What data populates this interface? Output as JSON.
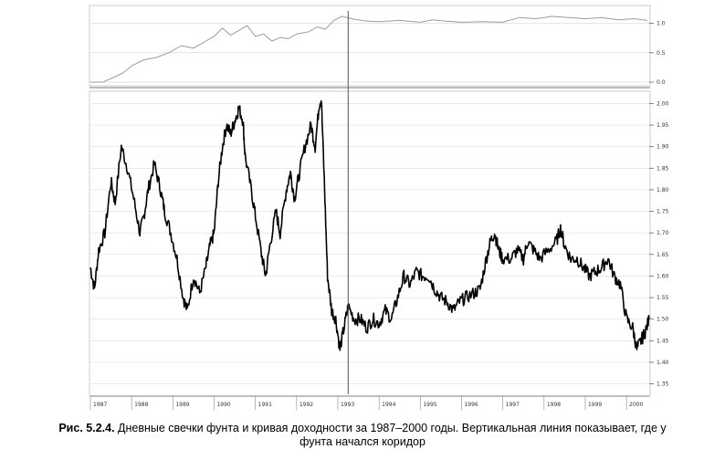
{
  "caption": {
    "label": "Рис. 5.2.4.",
    "line1": "Дневные свечки фунта и кривая доходности за 1987–2000 годы. Вертикальная линия показывает, где у",
    "line2": "фунта начался коридор"
  },
  "colors": {
    "price": "#000000",
    "equity": "#9a9a9a",
    "grid": "#cccccc",
    "marker": "#555555"
  },
  "chart_data": [
    {
      "type": "line",
      "panel": "equity-curve",
      "yticks": [
        "1.0",
        "0.5",
        "0.0"
      ],
      "ylim": [
        0,
        1.15
      ],
      "xlim": [
        1987.0,
        2000.55
      ],
      "series": [
        {
          "points": [
            [
              1987.0,
              0.0
            ],
            [
              1987.3,
              0.0
            ],
            [
              1987.5,
              0.06
            ],
            [
              1987.8,
              0.16
            ],
            [
              1988.0,
              0.28
            ],
            [
              1988.3,
              0.38
            ],
            [
              1988.6,
              0.42
            ],
            [
              1988.9,
              0.5
            ],
            [
              1989.2,
              0.62
            ],
            [
              1989.5,
              0.58
            ],
            [
              1989.8,
              0.7
            ],
            [
              1990.0,
              0.78
            ],
            [
              1990.2,
              0.92
            ],
            [
              1990.4,
              0.8
            ],
            [
              1990.6,
              0.88
            ],
            [
              1990.8,
              0.96
            ],
            [
              1991.0,
              0.78
            ],
            [
              1991.2,
              0.82
            ],
            [
              1991.4,
              0.7
            ],
            [
              1991.6,
              0.76
            ],
            [
              1991.8,
              0.74
            ],
            [
              1992.0,
              0.82
            ],
            [
              1992.3,
              0.86
            ],
            [
              1992.5,
              0.94
            ],
            [
              1992.7,
              0.9
            ],
            [
              1992.9,
              1.05
            ],
            [
              1993.1,
              1.12
            ],
            [
              1993.4,
              1.07
            ],
            [
              1993.7,
              1.04
            ],
            [
              1994.0,
              1.03
            ],
            [
              1994.5,
              1.05
            ],
            [
              1995.0,
              1.02
            ],
            [
              1995.3,
              1.06
            ],
            [
              1995.6,
              1.04
            ],
            [
              1996.0,
              1.02
            ],
            [
              1996.5,
              1.03
            ],
            [
              1997.0,
              1.02
            ],
            [
              1997.4,
              1.1
            ],
            [
              1997.8,
              1.08
            ],
            [
              1998.2,
              1.12
            ],
            [
              1998.6,
              1.1
            ],
            [
              1999.0,
              1.08
            ],
            [
              1999.4,
              1.1
            ],
            [
              1999.8,
              1.06
            ],
            [
              2000.2,
              1.08
            ],
            [
              2000.5,
              1.05
            ]
          ]
        }
      ]
    },
    {
      "type": "line",
      "panel": "gbp-daily-price",
      "yticks": [
        "2.00",
        "1.95",
        "1.90",
        "1.85",
        "1.80",
        "1.75",
        "1.70",
        "1.65",
        "1.60",
        "1.55",
        "1.50",
        "1.45",
        "1.40",
        "1.35"
      ],
      "ylim": [
        1.33,
        2.02
      ],
      "xlim": [
        1987.0,
        2000.55
      ],
      "xticks": [
        "1987",
        "1988",
        "1989",
        "1990",
        "1991",
        "1992",
        "1993",
        "1994",
        "1995",
        "1996",
        "1997",
        "1998",
        "1999",
        "2000"
      ],
      "corridor_start": 1993.25,
      "series": [
        {
          "points": [
            [
              1987.0,
              1.62
            ],
            [
              1987.1,
              1.57
            ],
            [
              1987.2,
              1.66
            ],
            [
              1987.35,
              1.7
            ],
            [
              1987.5,
              1.82
            ],
            [
              1987.6,
              1.77
            ],
            [
              1987.75,
              1.9
            ],
            [
              1987.9,
              1.85
            ],
            [
              1988.05,
              1.78
            ],
            [
              1988.2,
              1.7
            ],
            [
              1988.3,
              1.74
            ],
            [
              1988.4,
              1.8
            ],
            [
              1988.55,
              1.86
            ],
            [
              1988.7,
              1.8
            ],
            [
              1988.8,
              1.75
            ],
            [
              1988.95,
              1.7
            ],
            [
              1989.1,
              1.64
            ],
            [
              1989.25,
              1.55
            ],
            [
              1989.35,
              1.52
            ],
            [
              1989.5,
              1.6
            ],
            [
              1989.65,
              1.56
            ],
            [
              1989.8,
              1.62
            ],
            [
              1989.9,
              1.67
            ],
            [
              1990.0,
              1.7
            ],
            [
              1990.1,
              1.82
            ],
            [
              1990.2,
              1.9
            ],
            [
              1990.3,
              1.95
            ],
            [
              1990.4,
              1.93
            ],
            [
              1990.5,
              1.96
            ],
            [
              1990.6,
              1.99
            ],
            [
              1990.7,
              1.96
            ],
            [
              1990.75,
              1.88
            ],
            [
              1990.9,
              1.8
            ],
            [
              1991.0,
              1.74
            ],
            [
              1991.15,
              1.65
            ],
            [
              1991.25,
              1.6
            ],
            [
              1991.35,
              1.67
            ],
            [
              1991.5,
              1.75
            ],
            [
              1991.6,
              1.7
            ],
            [
              1991.75,
              1.8
            ],
            [
              1991.85,
              1.84
            ],
            [
              1991.95,
              1.78
            ],
            [
              1992.05,
              1.83
            ],
            [
              1992.2,
              1.9
            ],
            [
              1992.35,
              1.95
            ],
            [
              1992.45,
              1.9
            ],
            [
              1992.55,
              2.0
            ],
            [
              1992.6,
              2.01
            ],
            [
              1992.68,
              1.8
            ],
            [
              1992.75,
              1.6
            ],
            [
              1992.85,
              1.52
            ],
            [
              1992.95,
              1.5
            ],
            [
              1993.05,
              1.43
            ],
            [
              1993.15,
              1.48
            ],
            [
              1993.25,
              1.53
            ],
            [
              1993.4,
              1.5
            ],
            [
              1993.55,
              1.5
            ],
            [
              1993.7,
              1.48
            ],
            [
              1993.85,
              1.5
            ],
            [
              1994.0,
              1.49
            ],
            [
              1994.15,
              1.52
            ],
            [
              1994.3,
              1.5
            ],
            [
              1994.45,
              1.55
            ],
            [
              1994.6,
              1.6
            ],
            [
              1994.75,
              1.58
            ],
            [
              1994.9,
              1.61
            ],
            [
              1995.05,
              1.6
            ],
            [
              1995.2,
              1.6
            ],
            [
              1995.35,
              1.57
            ],
            [
              1995.5,
              1.55
            ],
            [
              1995.65,
              1.54
            ],
            [
              1995.8,
              1.52
            ],
            [
              1995.95,
              1.54
            ],
            [
              1996.1,
              1.55
            ],
            [
              1996.3,
              1.56
            ],
            [
              1996.45,
              1.57
            ],
            [
              1996.6,
              1.64
            ],
            [
              1996.7,
              1.68
            ],
            [
              1996.8,
              1.7
            ],
            [
              1996.9,
              1.66
            ],
            [
              1997.0,
              1.64
            ],
            [
              1997.2,
              1.64
            ],
            [
              1997.35,
              1.66
            ],
            [
              1997.5,
              1.64
            ],
            [
              1997.6,
              1.68
            ],
            [
              1997.75,
              1.66
            ],
            [
              1997.9,
              1.64
            ],
            [
              1998.1,
              1.66
            ],
            [
              1998.3,
              1.68
            ],
            [
              1998.4,
              1.71
            ],
            [
              1998.5,
              1.67
            ],
            [
              1998.65,
              1.64
            ],
            [
              1998.8,
              1.64
            ],
            [
              1998.95,
              1.62
            ],
            [
              1999.1,
              1.6
            ],
            [
              1999.25,
              1.61
            ],
            [
              1999.4,
              1.62
            ],
            [
              1999.55,
              1.64
            ],
            [
              1999.7,
              1.6
            ],
            [
              1999.85,
              1.58
            ],
            [
              2000.0,
              1.5
            ],
            [
              2000.15,
              1.48
            ],
            [
              2000.25,
              1.43
            ],
            [
              2000.35,
              1.45
            ],
            [
              2000.45,
              1.47
            ],
            [
              2000.55,
              1.5
            ]
          ]
        }
      ]
    }
  ]
}
